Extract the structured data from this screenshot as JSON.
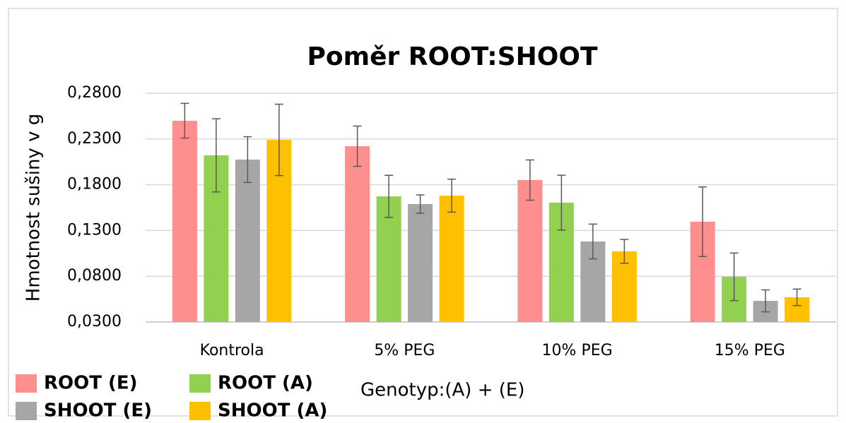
{
  "chart_data": {
    "type": "bar",
    "title": "Poměr ROOT:SHOOT",
    "y_label": "Hmotnost sušiny v g",
    "x_label": "Genotyp:(A) + (E)",
    "categories": [
      "Kontrola",
      "5% PEG",
      "10% PEG",
      "15% PEG"
    ],
    "series": [
      {
        "name": "ROOT (E)",
        "color": "#ff8f8f",
        "values": [
          0.2499,
          0.2221,
          0.1851,
          0.1396
        ],
        "errors": [
          0.019,
          0.022,
          0.022,
          0.038
        ]
      },
      {
        "name": "ROOT (A)",
        "color": "#92d050",
        "values": [
          0.2121,
          0.1673,
          0.1604,
          0.0794
        ],
        "errors": [
          0.04,
          0.023,
          0.03,
          0.026
        ]
      },
      {
        "name": "SHOOT (E)",
        "color": "#a6a6a6",
        "values": [
          0.2075,
          0.1589,
          0.118,
          0.0531
        ],
        "errors": [
          0.025,
          0.01,
          0.019,
          0.012
        ]
      },
      {
        "name": "SHOOT (A)",
        "color": "#ffc000",
        "values": [
          0.229,
          0.1681,
          0.1072,
          0.057
        ],
        "errors": [
          0.039,
          0.018,
          0.013,
          0.009
        ]
      }
    ],
    "ylim": [
      0.03,
      0.28
    ],
    "yticks": [
      {
        "value": 0.03,
        "label": "0,0300"
      },
      {
        "value": 0.08,
        "label": "0,0800"
      },
      {
        "value": 0.13,
        "label": "0,1300"
      },
      {
        "value": 0.18,
        "label": "0,1800"
      },
      {
        "value": 0.23,
        "label": "0,2300"
      },
      {
        "value": 0.28,
        "label": "0,2800"
      }
    ],
    "grid": true,
    "legend": "bottom-left"
  }
}
